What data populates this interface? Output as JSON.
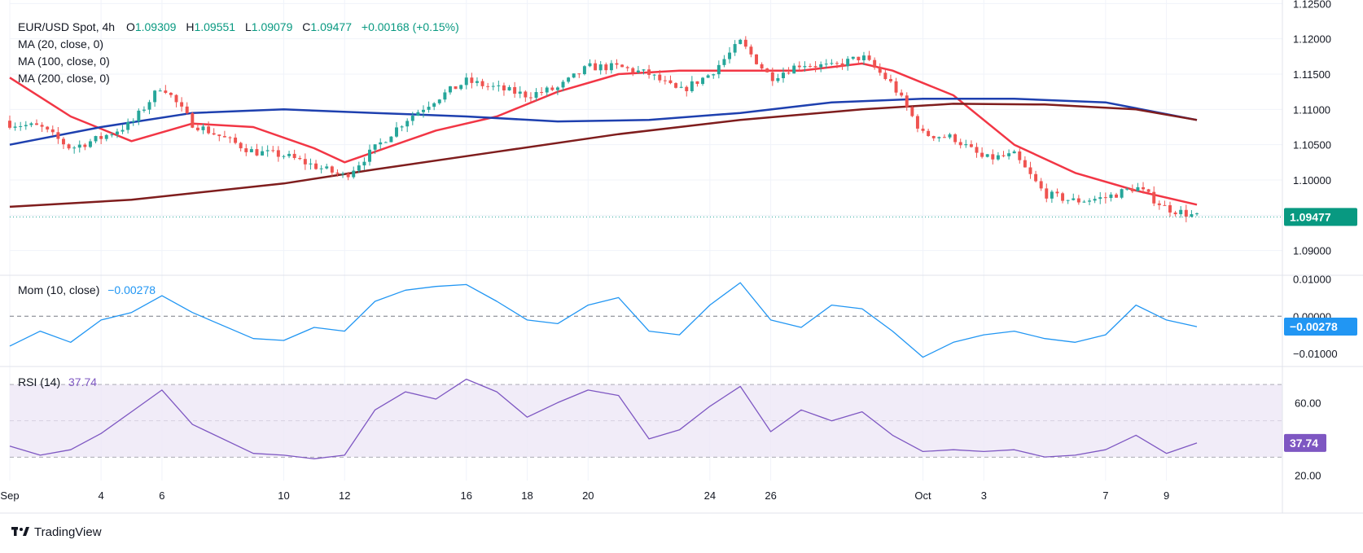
{
  "header": {
    "symbol": "EUR/USD Spot, 4h",
    "o_label": "O",
    "o": "1.09309",
    "h_label": "H",
    "h": "1.09551",
    "l_label": "L",
    "l": "1.09079",
    "c_label": "C",
    "c": "1.09477",
    "change": "+0.00168 (+0.15%)"
  },
  "indicators": {
    "ma20": "MA (20, close, 0)",
    "ma100": "MA (100, close, 0)",
    "ma200": "MA (200, close, 0)",
    "mom_label": "Mom (10, close)",
    "mom_value": "−0.00278",
    "rsi_label": "RSI (14)",
    "rsi_value": "37.74"
  },
  "brand": "TradingView",
  "colors": {
    "up": "#26a69a",
    "down": "#ef5350",
    "ma20": "#f23645",
    "ma100": "#1e40af",
    "ma200": "#7f1d1d",
    "momentum": "#2196f3",
    "rsi": "#7e57c2",
    "rsi_band": "#ede7f6"
  },
  "chart_data": [
    {
      "type": "candlestick",
      "title": "EUR/USD Spot, 4h",
      "ylim": [
        1.0865,
        1.1255
      ],
      "y_ticks": [
        "1.09000",
        "1.09500",
        "1.10000",
        "1.10500",
        "1.11000",
        "1.11500",
        "1.12000",
        "1.12500"
      ],
      "last_price": "1.09477",
      "x_ticks": [
        "Sep",
        "4",
        "6",
        "10",
        "12",
        "16",
        "18",
        "20",
        "24",
        "26",
        "Oct",
        "3",
        "7",
        "9"
      ],
      "x_range": [
        "2019-09-01",
        "2019-10-10"
      ],
      "price_path": [
        [
          "2019-09-01",
          1.108
        ],
        [
          "2019-09-02",
          1.1075
        ],
        [
          "2019-09-03",
          1.1045
        ],
        [
          "2019-09-04",
          1.106
        ],
        [
          "2019-09-05",
          1.108
        ],
        [
          "2019-09-06",
          1.1135
        ],
        [
          "2019-09-07",
          1.108
        ],
        [
          "2019-09-09",
          1.104
        ],
        [
          "2019-09-10",
          1.1035
        ],
        [
          "2019-09-11",
          1.102
        ],
        [
          "2019-09-12",
          1.1005
        ],
        [
          "2019-09-13",
          1.1045
        ],
        [
          "2019-09-14",
          1.1085
        ],
        [
          "2019-09-15",
          1.1115
        ],
        [
          "2019-09-16",
          1.114
        ],
        [
          "2019-09-17",
          1.113
        ],
        [
          "2019-09-18",
          1.112
        ],
        [
          "2019-09-19",
          1.113
        ],
        [
          "2019-09-20",
          1.116
        ],
        [
          "2019-09-21",
          1.116
        ],
        [
          "2019-09-22",
          1.115
        ],
        [
          "2019-09-23",
          1.1125
        ],
        [
          "2019-09-24",
          1.115
        ],
        [
          "2019-09-25",
          1.1195
        ],
        [
          "2019-09-26",
          1.1145
        ],
        [
          "2019-09-27",
          1.1165
        ],
        [
          "2019-09-28",
          1.116
        ],
        [
          "2019-09-29",
          1.1175
        ],
        [
          "2019-09-30",
          1.1135
        ],
        [
          "2019-10-01",
          1.1065
        ],
        [
          "2019-10-02",
          1.106
        ],
        [
          "2019-10-03",
          1.103
        ],
        [
          "2019-10-04",
          1.1035
        ],
        [
          "2019-10-05",
          1.098
        ],
        [
          "2019-10-06",
          1.097
        ],
        [
          "2019-10-07",
          1.0975
        ],
        [
          "2019-10-08",
          1.099
        ],
        [
          "2019-10-09",
          1.096
        ],
        [
          "2019-10-10",
          1.0948
        ]
      ],
      "series": [
        {
          "name": "MA (20, close, 0)",
          "values": [
            [
              "2019-09-01",
              1.1145
            ],
            [
              "2019-09-03",
              1.109
            ],
            [
              "2019-09-05",
              1.1055
            ],
            [
              "2019-09-07",
              1.108
            ],
            [
              "2019-09-09",
              1.1075
            ],
            [
              "2019-09-11",
              1.1045
            ],
            [
              "2019-09-12",
              1.1025
            ],
            [
              "2019-09-13",
              1.104
            ],
            [
              "2019-09-15",
              1.107
            ],
            [
              "2019-09-17",
              1.109
            ],
            [
              "2019-09-19",
              1.1125
            ],
            [
              "2019-09-21",
              1.115
            ],
            [
              "2019-09-23",
              1.1155
            ],
            [
              "2019-09-25",
              1.1155
            ],
            [
              "2019-09-27",
              1.1155
            ],
            [
              "2019-09-29",
              1.1165
            ],
            [
              "2019-09-30",
              1.1155
            ],
            [
              "2019-10-02",
              1.112
            ],
            [
              "2019-10-04",
              1.105
            ],
            [
              "2019-10-06",
              1.101
            ],
            [
              "2019-10-08",
              1.0985
            ],
            [
              "2019-10-10",
              1.0965
            ]
          ]
        },
        {
          "name": "MA (100, close, 0)",
          "values": [
            [
              "2019-09-01",
              1.105
            ],
            [
              "2019-09-04",
              1.1075
            ],
            [
              "2019-09-07",
              1.1095
            ],
            [
              "2019-09-10",
              1.11
            ],
            [
              "2019-09-13",
              1.1095
            ],
            [
              "2019-09-16",
              1.109
            ],
            [
              "2019-09-19",
              1.1083
            ],
            [
              "2019-09-22",
              1.1085
            ],
            [
              "2019-09-25",
              1.1095
            ],
            [
              "2019-09-28",
              1.111
            ],
            [
              "2019-10-01",
              1.1115
            ],
            [
              "2019-10-04",
              1.1115
            ],
            [
              "2019-10-07",
              1.111
            ],
            [
              "2019-10-10",
              1.1085
            ]
          ]
        },
        {
          "name": "MA (200, close, 0)",
          "values": [
            [
              "2019-09-01",
              1.0962
            ],
            [
              "2019-09-05",
              1.0972
            ],
            [
              "2019-09-10",
              1.0995
            ],
            [
              "2019-09-13",
              1.1015
            ],
            [
              "2019-09-17",
              1.104
            ],
            [
              "2019-09-21",
              1.1065
            ],
            [
              "2019-09-25",
              1.1085
            ],
            [
              "2019-09-29",
              1.11
            ],
            [
              "2019-10-02",
              1.1108
            ],
            [
              "2019-10-05",
              1.1107
            ],
            [
              "2019-10-08",
              1.11
            ],
            [
              "2019-10-10",
              1.1085
            ]
          ]
        }
      ]
    },
    {
      "type": "line",
      "title": "Mom (10, close)",
      "ylim": [
        -0.0135,
        0.011
      ],
      "y_ticks": [
        "0.01000",
        "0.00000",
        "−0.01000"
      ],
      "last_value": "−0.00278",
      "series": [
        {
          "name": "Mom (10, close)",
          "values": [
            [
              "2019-09-01",
              -0.008
            ],
            [
              "2019-09-02",
              -0.004
            ],
            [
              "2019-09-03",
              -0.007
            ],
            [
              "2019-09-04",
              -0.001
            ],
            [
              "2019-09-05",
              0.001
            ],
            [
              "2019-09-06",
              0.0055
            ],
            [
              "2019-09-07",
              0.001
            ],
            [
              "2019-09-09",
              -0.006
            ],
            [
              "2019-09-10",
              -0.0065
            ],
            [
              "2019-09-11",
              -0.003
            ],
            [
              "2019-09-12",
              -0.004
            ],
            [
              "2019-09-13",
              0.004
            ],
            [
              "2019-09-14",
              0.007
            ],
            [
              "2019-09-15",
              0.008
            ],
            [
              "2019-09-16",
              0.0085
            ],
            [
              "2019-09-17",
              0.004
            ],
            [
              "2019-09-18",
              -0.001
            ],
            [
              "2019-09-19",
              -0.002
            ],
            [
              "2019-09-20",
              0.003
            ],
            [
              "2019-09-21",
              0.005
            ],
            [
              "2019-09-22",
              -0.004
            ],
            [
              "2019-09-23",
              -0.005
            ],
            [
              "2019-09-24",
              0.003
            ],
            [
              "2019-09-25",
              0.009
            ],
            [
              "2019-09-26",
              -0.001
            ],
            [
              "2019-09-27",
              -0.003
            ],
            [
              "2019-09-28",
              0.003
            ],
            [
              "2019-09-29",
              0.002
            ],
            [
              "2019-09-30",
              -0.004
            ],
            [
              "2019-10-01",
              -0.011
            ],
            [
              "2019-10-02",
              -0.007
            ],
            [
              "2019-10-03",
              -0.005
            ],
            [
              "2019-10-04",
              -0.004
            ],
            [
              "2019-10-05",
              -0.006
            ],
            [
              "2019-10-06",
              -0.007
            ],
            [
              "2019-10-07",
              -0.005
            ],
            [
              "2019-10-08",
              0.003
            ],
            [
              "2019-10-09",
              -0.001
            ],
            [
              "2019-10-10",
              -0.0028
            ]
          ]
        }
      ]
    },
    {
      "type": "line",
      "title": "RSI (14)",
      "ylim": [
        17,
        80
      ],
      "y_ticks": [
        "60.00",
        "20.00"
      ],
      "band": [
        30,
        70
      ],
      "mid": 50,
      "last_value": "37.74",
      "series": [
        {
          "name": "RSI (14)",
          "values": [
            [
              "2019-09-01",
              36
            ],
            [
              "2019-09-02",
              31
            ],
            [
              "2019-09-03",
              34
            ],
            [
              "2019-09-04",
              43
            ],
            [
              "2019-09-05",
              55
            ],
            [
              "2019-09-06",
              67
            ],
            [
              "2019-09-07",
              48
            ],
            [
              "2019-09-09",
              32
            ],
            [
              "2019-09-10",
              31
            ],
            [
              "2019-09-11",
              29
            ],
            [
              "2019-09-12",
              31
            ],
            [
              "2019-09-13",
              56
            ],
            [
              "2019-09-14",
              66
            ],
            [
              "2019-09-15",
              62
            ],
            [
              "2019-09-16",
              73
            ],
            [
              "2019-09-17",
              66
            ],
            [
              "2019-09-18",
              52
            ],
            [
              "2019-09-19",
              60
            ],
            [
              "2019-09-20",
              67
            ],
            [
              "2019-09-21",
              64
            ],
            [
              "2019-09-22",
              40
            ],
            [
              "2019-09-23",
              45
            ],
            [
              "2019-09-24",
              58
            ],
            [
              "2019-09-25",
              69
            ],
            [
              "2019-09-26",
              44
            ],
            [
              "2019-09-27",
              56
            ],
            [
              "2019-09-28",
              50
            ],
            [
              "2019-09-29",
              55
            ],
            [
              "2019-09-30",
              42
            ],
            [
              "2019-10-01",
              33
            ],
            [
              "2019-10-02",
              34
            ],
            [
              "2019-10-03",
              33
            ],
            [
              "2019-10-04",
              34
            ],
            [
              "2019-10-05",
              30
            ],
            [
              "2019-10-06",
              31
            ],
            [
              "2019-10-07",
              34
            ],
            [
              "2019-10-08",
              42
            ],
            [
              "2019-10-09",
              32
            ],
            [
              "2019-10-10",
              37.74
            ]
          ]
        }
      ]
    }
  ]
}
